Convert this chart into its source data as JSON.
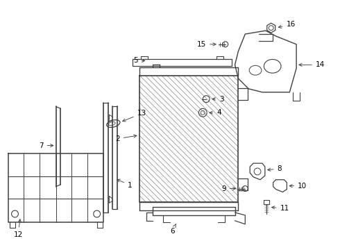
{
  "bg_color": "#ffffff",
  "line_color": "#404040",
  "label_color": "#000000",
  "label_fontsize": 7.5
}
